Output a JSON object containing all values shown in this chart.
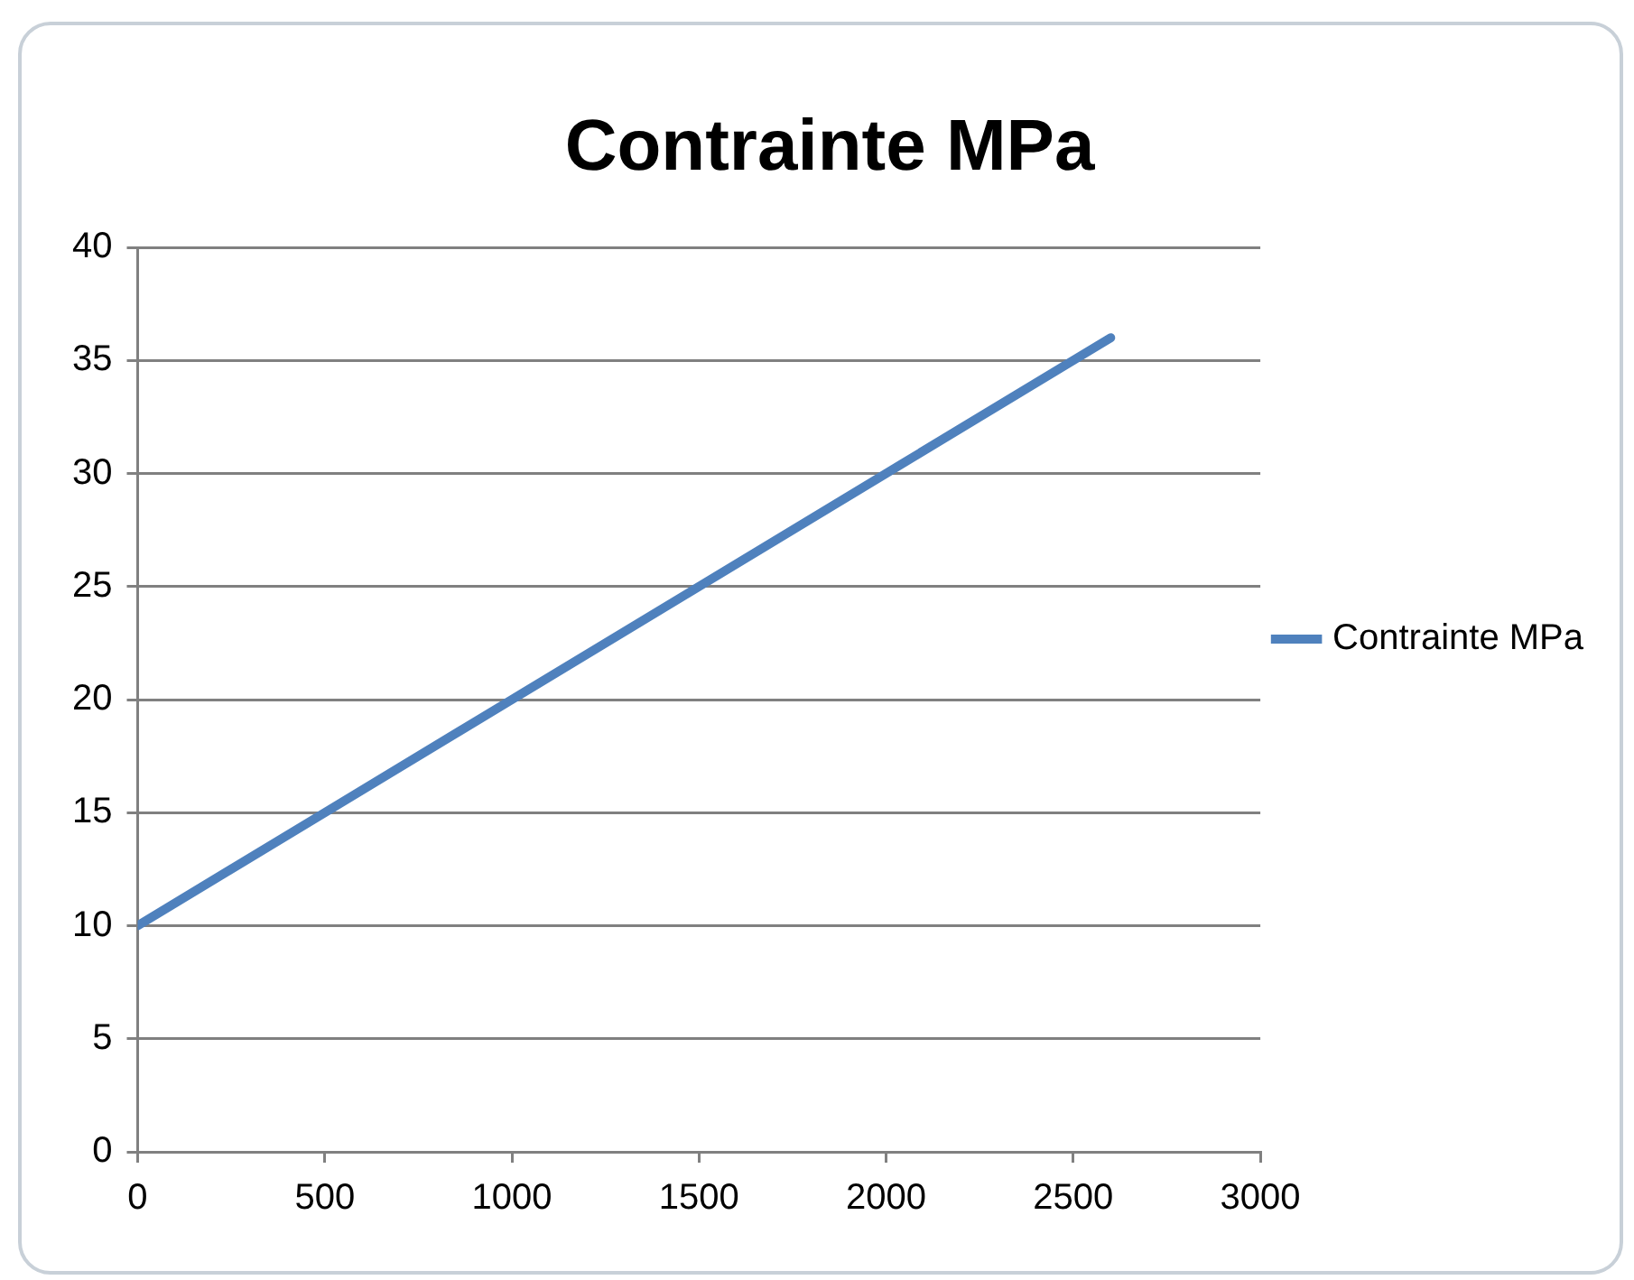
{
  "chart_data": {
    "type": "line",
    "title": "Contrainte MPa",
    "x": [
      0,
      500,
      1000,
      1500,
      2000,
      2500,
      2600
    ],
    "series": [
      {
        "name": "Contrainte MPa",
        "color": "#4f81bd",
        "values": [
          10,
          15,
          20,
          25,
          30,
          35,
          36
        ]
      }
    ],
    "xlim": [
      0,
      3000
    ],
    "xticks": [
      0,
      500,
      1000,
      1500,
      2000,
      2500,
      3000
    ],
    "ylim": [
      0,
      40
    ],
    "yticks": [
      0,
      5,
      10,
      15,
      20,
      25,
      30,
      35,
      40
    ],
    "grid": "y",
    "legend": "right",
    "marker": "none",
    "line_style": "solid"
  }
}
